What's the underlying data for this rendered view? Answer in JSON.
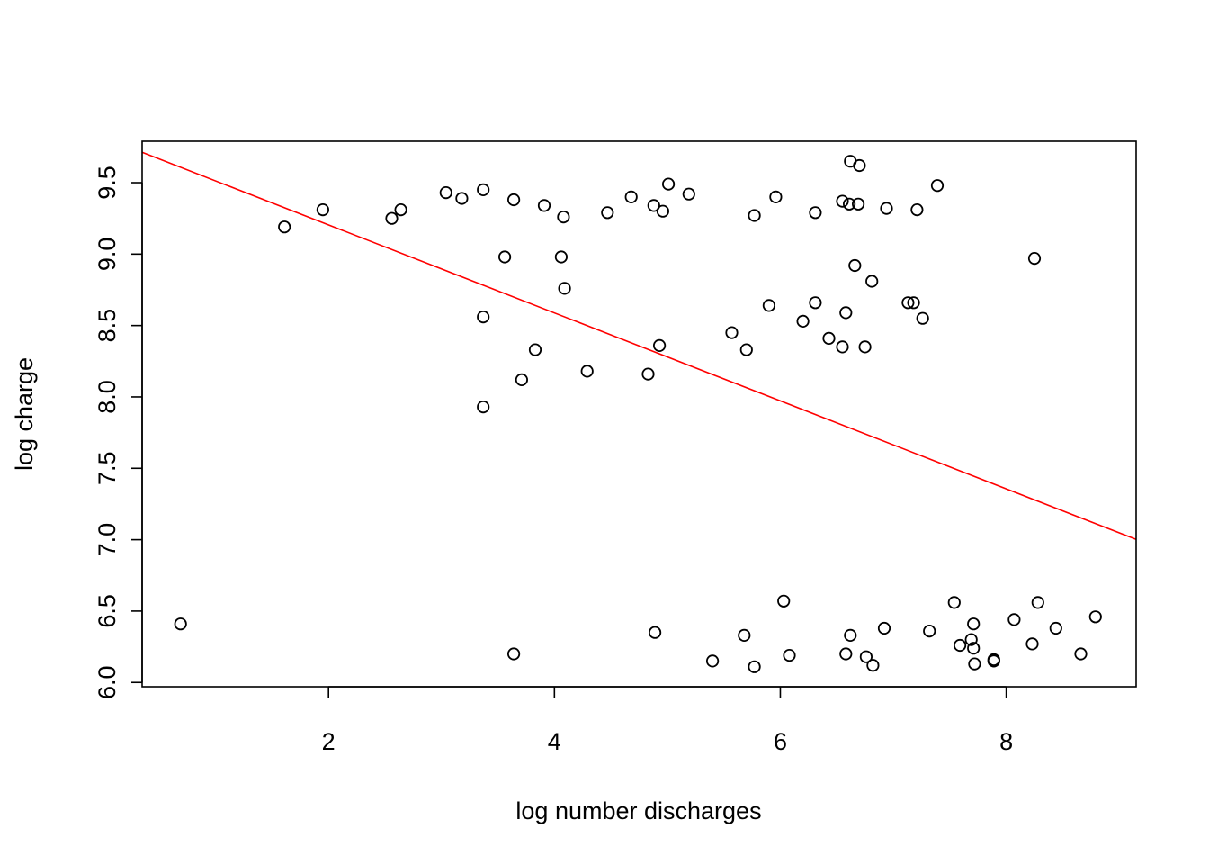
{
  "chart_data": {
    "type": "scatter",
    "title": "",
    "xlabel": "log number discharges",
    "ylabel": "log charge",
    "xlim": [
      0.35,
      9.15
    ],
    "ylim": [
      5.97,
      9.79
    ],
    "x_ticks": [
      2,
      4,
      6,
      8
    ],
    "x_tick_labels": [
      "2",
      "4",
      "6",
      "8"
    ],
    "y_ticks": [
      6.0,
      6.5,
      7.0,
      7.5,
      8.0,
      8.5,
      9.0,
      9.5
    ],
    "y_tick_labels": [
      "6.0",
      "6.5",
      "7.0",
      "7.5",
      "8.0",
      "8.5",
      "9.0",
      "9.5"
    ],
    "grid": false,
    "point_color": "#000000",
    "line_color": "#ff0000",
    "fit_line": {
      "intercept": 9.82,
      "slope": -0.308
    },
    "points": [
      [
        0.69,
        6.41
      ],
      [
        1.61,
        9.19
      ],
      [
        1.95,
        9.31
      ],
      [
        2.56,
        9.25
      ],
      [
        2.64,
        9.31
      ],
      [
        3.04,
        9.43
      ],
      [
        3.18,
        9.39
      ],
      [
        3.37,
        9.45
      ],
      [
        3.37,
        8.56
      ],
      [
        3.37,
        7.93
      ],
      [
        3.56,
        8.98
      ],
      [
        3.64,
        9.38
      ],
      [
        3.64,
        6.2
      ],
      [
        3.71,
        8.12
      ],
      [
        3.83,
        8.33
      ],
      [
        3.91,
        9.34
      ],
      [
        4.06,
        8.98
      ],
      [
        4.08,
        9.26
      ],
      [
        4.09,
        8.76
      ],
      [
        4.29,
        8.18
      ],
      [
        4.47,
        9.29
      ],
      [
        4.68,
        9.4
      ],
      [
        4.83,
        8.16
      ],
      [
        4.88,
        9.34
      ],
      [
        4.89,
        6.35
      ],
      [
        4.93,
        8.36
      ],
      [
        4.96,
        9.3
      ],
      [
        5.01,
        9.49
      ],
      [
        5.19,
        9.42
      ],
      [
        5.4,
        6.15
      ],
      [
        5.57,
        8.45
      ],
      [
        5.68,
        6.33
      ],
      [
        5.7,
        8.33
      ],
      [
        5.77,
        9.27
      ],
      [
        5.77,
        6.11
      ],
      [
        5.9,
        8.64
      ],
      [
        5.96,
        9.4
      ],
      [
        6.03,
        6.57
      ],
      [
        6.08,
        6.19
      ],
      [
        6.2,
        8.53
      ],
      [
        6.31,
        9.29
      ],
      [
        6.31,
        8.66
      ],
      [
        6.43,
        8.41
      ],
      [
        6.55,
        8.35
      ],
      [
        6.55,
        9.37
      ],
      [
        6.58,
        8.59
      ],
      [
        6.58,
        6.2
      ],
      [
        6.61,
        9.35
      ],
      [
        6.62,
        9.65
      ],
      [
        6.62,
        6.33
      ],
      [
        6.66,
        8.92
      ],
      [
        6.69,
        9.35
      ],
      [
        6.7,
        9.62
      ],
      [
        6.75,
        8.35
      ],
      [
        6.76,
        6.18
      ],
      [
        6.81,
        8.81
      ],
      [
        6.82,
        6.12
      ],
      [
        6.92,
        6.38
      ],
      [
        6.94,
        9.32
      ],
      [
        7.13,
        8.66
      ],
      [
        7.18,
        8.66
      ],
      [
        7.21,
        9.31
      ],
      [
        7.26,
        8.55
      ],
      [
        7.32,
        6.36
      ],
      [
        7.39,
        9.48
      ],
      [
        7.54,
        6.56
      ],
      [
        7.59,
        6.26
      ],
      [
        7.69,
        6.3
      ],
      [
        7.71,
        6.41
      ],
      [
        7.71,
        6.24
      ],
      [
        7.72,
        6.13
      ],
      [
        7.89,
        6.16
      ],
      [
        7.89,
        6.15
      ],
      [
        8.07,
        6.44
      ],
      [
        8.23,
        6.27
      ],
      [
        8.25,
        8.97
      ],
      [
        8.28,
        6.56
      ],
      [
        8.44,
        6.38
      ],
      [
        8.66,
        6.2
      ],
      [
        8.79,
        6.46
      ]
    ]
  }
}
